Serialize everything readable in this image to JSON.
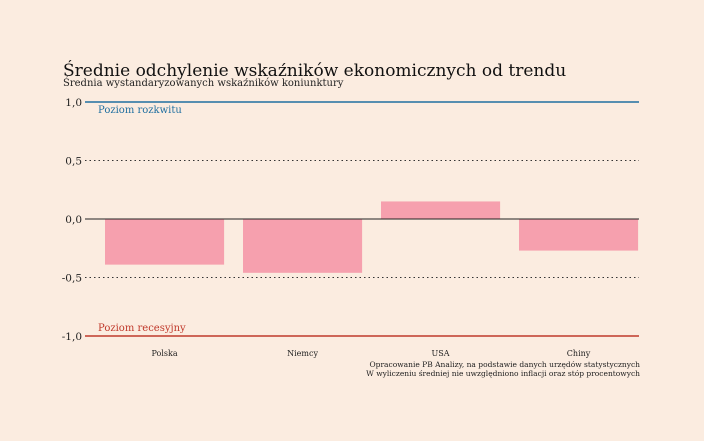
{
  "chart_data": {
    "type": "bar",
    "title": "Średnie odchylenie wskaźników ekonomicznych od trendu",
    "subtitle": "Średnia wystandaryzowanych wskaźników koniunktury",
    "categories": [
      "Polska",
      "Niemcy",
      "USA",
      "Chiny"
    ],
    "values": [
      -0.39,
      -0.46,
      0.15,
      -0.27
    ],
    "ylim": [
      -1.0,
      1.0
    ],
    "yticks": [
      1.0,
      0.5,
      0.0,
      -0.5,
      -1.0
    ],
    "ytick_labels": [
      "1,0",
      "0,5",
      "0,0",
      "-0,5",
      "-1,0"
    ],
    "grid": true,
    "bar_color": "#f6a0ae",
    "reference_lines": [
      {
        "value": 1.0,
        "label": "Poziom rozkwitu",
        "color": "#1f6fa0"
      },
      {
        "value": -1.0,
        "label": "Poziom recesyjny",
        "color": "#c0392b"
      }
    ],
    "source_lines": [
      "Opracowanie PB Analizy, na podstawie danych urzędów statystycznych",
      "W wyliczeniu średniej nie uwzględniono inflacji oraz stóp procentowych"
    ]
  }
}
